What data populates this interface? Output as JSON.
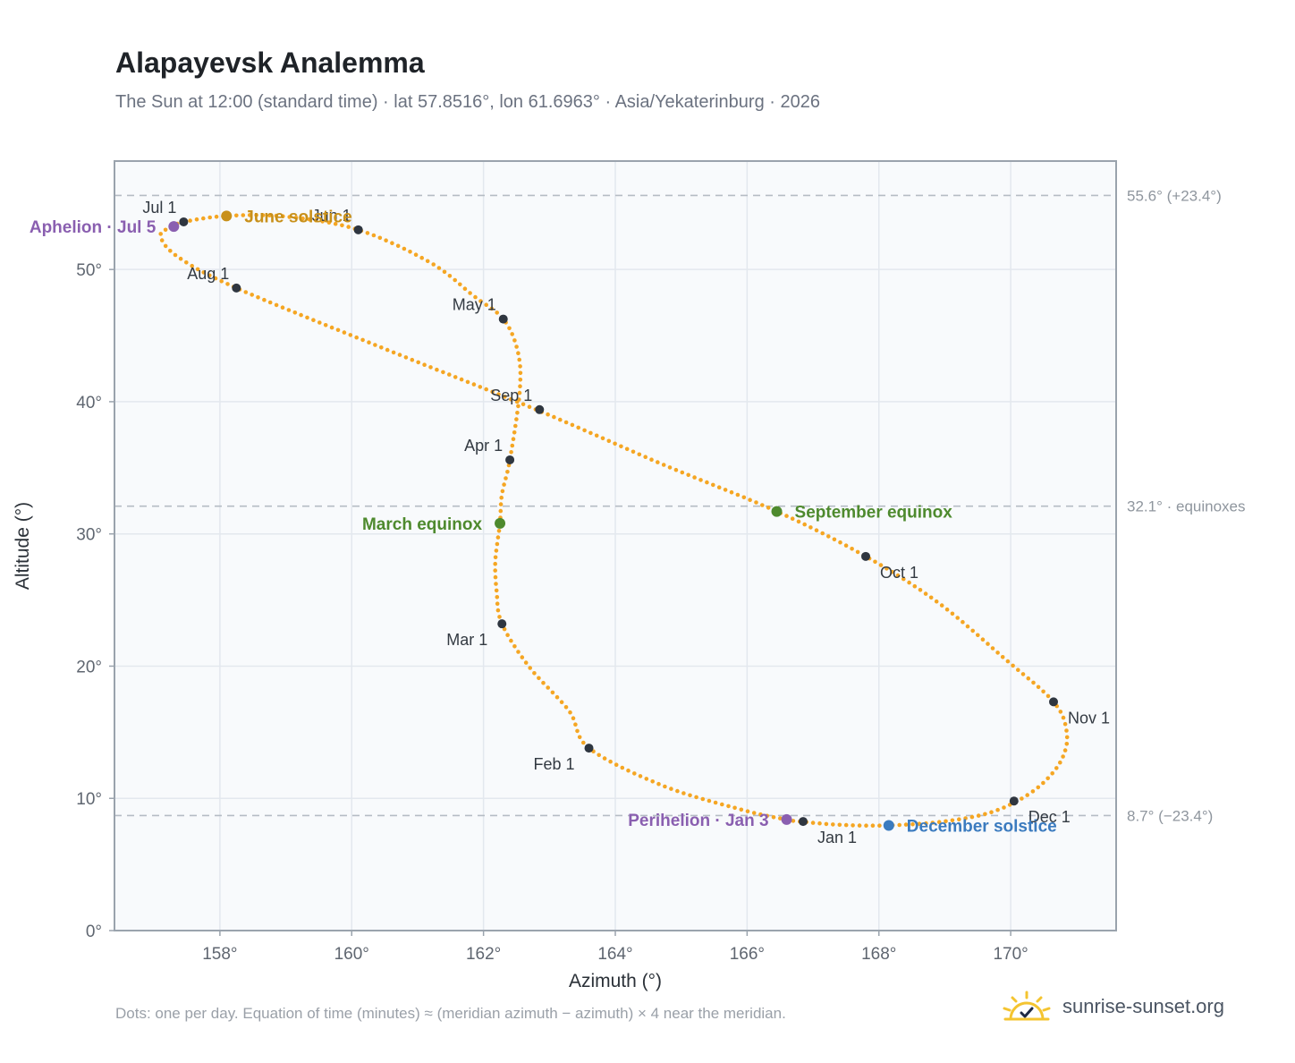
{
  "header": {
    "title": "Alapayevsk Analemma",
    "subtitle": "The Sun at 12:00 (standard time) · lat 57.8516°, lon 61.6963° · Asia/Yekaterinburg · 2026"
  },
  "footer": {
    "note": "Dots: one per day. Equation of time (minutes) ≈ (meridian azimuth − azimuth) × 4 near the meridian.",
    "brand": "sunrise-sunset.org"
  },
  "colors": {
    "curve": "#f5a623",
    "month_marker": "#2f3640",
    "solstice_june": "#c8901a",
    "equinox": "#4e8a2e",
    "december": "#3b7bbf",
    "apsis": "#8a5fb0",
    "grid": "#e3e8ee",
    "plot_bg": "#f8fafc",
    "frame": "#9aa3ad",
    "ref_line": "#b5bcc4",
    "brand_sun": "#f4c430"
  },
  "chart_data": {
    "type": "scatter",
    "xlabel": "Azimuth (°)",
    "ylabel": "Altitude (°)",
    "xlim": [
      156.4,
      171.6
    ],
    "ylim": [
      0,
      58.2
    ],
    "xticks": [
      158,
      160,
      162,
      164,
      166,
      168,
      170
    ],
    "xtick_labels": [
      "158°",
      "160°",
      "162°",
      "164°",
      "166°",
      "168°",
      "170°"
    ],
    "yticks": [
      0,
      10,
      20,
      30,
      40,
      50
    ],
    "ytick_labels": [
      "0°",
      "10°",
      "20°",
      "30°",
      "40°",
      "50°"
    ],
    "grid": true,
    "reference_lines": [
      {
        "y": 55.6,
        "label": "55.6° (+23.4°)"
      },
      {
        "y": 32.1,
        "label": "32.1° · equinoxes"
      },
      {
        "y": 8.7,
        "label": "8.7° (−23.4°)"
      }
    ],
    "curve_points": [
      [
        166.8,
        8.25
      ],
      [
        167.4,
        8.0
      ],
      [
        168.1,
        7.95
      ],
      [
        168.9,
        8.2
      ],
      [
        169.6,
        8.8
      ],
      [
        170.1,
        9.8
      ],
      [
        170.5,
        11.2
      ],
      [
        170.78,
        13.0
      ],
      [
        170.85,
        15.0
      ],
      [
        170.65,
        17.3
      ],
      [
        169.9,
        20.6
      ],
      [
        168.9,
        24.8
      ],
      [
        167.8,
        28.3
      ],
      [
        166.45,
        31.7
      ],
      [
        164.7,
        35.3
      ],
      [
        162.8,
        39.4
      ],
      [
        160.5,
        44.0
      ],
      [
        158.25,
        48.6
      ],
      [
        157.35,
        51.0
      ],
      [
        157.1,
        52.6
      ],
      [
        157.3,
        53.25
      ],
      [
        157.45,
        53.6
      ],
      [
        158.1,
        54.05
      ],
      [
        159.0,
        54.0
      ],
      [
        160.1,
        53.0
      ],
      [
        161.2,
        50.5
      ],
      [
        161.85,
        48.0
      ],
      [
        162.3,
        46.25
      ],
      [
        162.52,
        43.8
      ],
      [
        162.55,
        40.8
      ],
      [
        162.4,
        35.6
      ],
      [
        162.28,
        33.0
      ],
      [
        162.25,
        30.8
      ],
      [
        162.18,
        28.0
      ],
      [
        162.2,
        25.6
      ],
      [
        162.28,
        23.2
      ],
      [
        162.7,
        19.9
      ],
      [
        163.3,
        16.6
      ],
      [
        163.6,
        13.8
      ],
      [
        164.7,
        11.0
      ],
      [
        165.8,
        9.3
      ],
      [
        166.6,
        8.4
      ],
      [
        166.8,
        8.25
      ]
    ],
    "month_markers": [
      {
        "label": "Jan 1",
        "x": 166.85,
        "y": 8.25,
        "anchor": "below-right"
      },
      {
        "label": "Feb 1",
        "x": 163.6,
        "y": 13.8,
        "anchor": "below-left"
      },
      {
        "label": "Mar 1",
        "x": 162.28,
        "y": 23.2,
        "anchor": "below-left"
      },
      {
        "label": "Apr 1",
        "x": 162.4,
        "y": 35.6,
        "anchor": "above-left"
      },
      {
        "label": "May 1",
        "x": 162.3,
        "y": 46.25,
        "anchor": "above-left"
      },
      {
        "label": "Jun 1",
        "x": 160.1,
        "y": 53.0,
        "anchor": "above-left"
      },
      {
        "label": "Jul 1",
        "x": 157.45,
        "y": 53.6,
        "anchor": "above-left"
      },
      {
        "label": "Aug 1",
        "x": 158.25,
        "y": 48.6,
        "anchor": "above-left"
      },
      {
        "label": "Sep 1",
        "x": 162.85,
        "y": 39.4,
        "anchor": "above-left"
      },
      {
        "label": "Oct 1",
        "x": 167.8,
        "y": 28.3,
        "anchor": "below-right"
      },
      {
        "label": "Nov 1",
        "x": 170.65,
        "y": 17.3,
        "anchor": "below-right"
      },
      {
        "label": "Dec 1",
        "x": 170.05,
        "y": 9.8,
        "anchor": "below-right"
      }
    ],
    "events": [
      {
        "label": "June solstice",
        "x": 158.1,
        "y": 54.05,
        "color_key": "solstice_june",
        "side": "right"
      },
      {
        "label": "March equinox",
        "x": 162.25,
        "y": 30.8,
        "color_key": "equinox",
        "side": "left"
      },
      {
        "label": "September equinox",
        "x": 166.45,
        "y": 31.7,
        "color_key": "equinox",
        "side": "right"
      },
      {
        "label": "December solstice",
        "x": 168.15,
        "y": 7.95,
        "color_key": "december",
        "side": "right"
      },
      {
        "label": "Perihelion · Jan 3",
        "x": 166.6,
        "y": 8.4,
        "color_key": "apsis",
        "side": "left"
      },
      {
        "label": "Aphelion · Jul 5",
        "x": 157.3,
        "y": 53.25,
        "color_key": "apsis",
        "side": "left"
      }
    ]
  }
}
